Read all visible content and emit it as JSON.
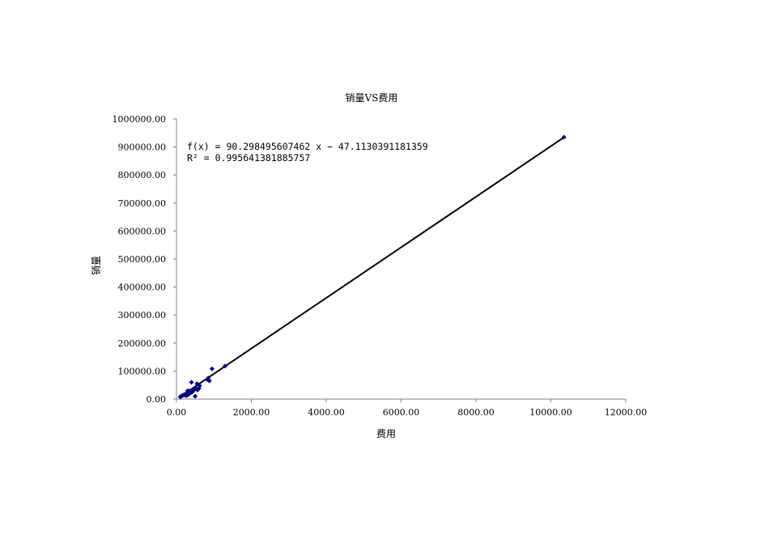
{
  "chart_data": {
    "type": "scatter",
    "title": "销量VS费用",
    "xlabel": "费用",
    "ylabel": "销量",
    "xlim": [
      0,
      12000
    ],
    "ylim": [
      0,
      1000000
    ],
    "xticks": [
      "0.00",
      "2000.00",
      "4000.00",
      "6000.00",
      "8000.00",
      "10000.00",
      "12000.00"
    ],
    "yticks": [
      "0.00",
      "100000.00",
      "200000.00",
      "300000.00",
      "400000.00",
      "500000.00",
      "600000.00",
      "700000.00",
      "800000.00",
      "900000.00",
      "1000000.00"
    ],
    "grid": false,
    "marker_color": "#000080",
    "trendline_color": "#000000",
    "trendline": {
      "type": "linear",
      "slope": 90.298495607462,
      "intercept": -47.1130391181359,
      "equation_text": "f(x) = 90.298495607462 x − 47.1130391181359",
      "r2_text": "R² = 0.995641381885757"
    },
    "points": [
      [
        10350,
        935000
      ],
      [
        1300,
        118000
      ],
      [
        950,
        108000
      ],
      [
        850,
        75000
      ],
      [
        820,
        70000
      ],
      [
        880,
        65000
      ],
      [
        400,
        60000
      ],
      [
        550,
        55000
      ],
      [
        620,
        48000
      ],
      [
        520,
        40000
      ],
      [
        480,
        35000
      ],
      [
        450,
        30000
      ],
      [
        560,
        32000
      ],
      [
        600,
        38000
      ],
      [
        300,
        30000
      ],
      [
        350,
        28000
      ],
      [
        330,
        20000
      ],
      [
        280,
        22000
      ],
      [
        250,
        18000
      ],
      [
        220,
        16000
      ],
      [
        200,
        15000
      ],
      [
        180,
        14000
      ],
      [
        150,
        12000
      ],
      [
        120,
        9000
      ],
      [
        100,
        8000
      ],
      [
        500,
        10000
      ],
      [
        420,
        25000
      ],
      [
        380,
        22000
      ],
      [
        260,
        12000
      ],
      [
        310,
        15000
      ]
    ]
  }
}
